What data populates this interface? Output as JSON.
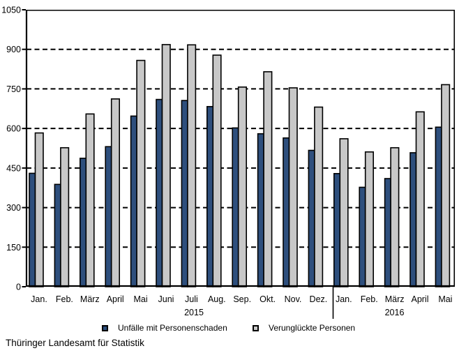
{
  "chart_data": {
    "type": "bar",
    "title": "",
    "xlabel": "",
    "ylabel": "",
    "categories": [
      "Jan.",
      "Feb.",
      "März",
      "April",
      "Mai",
      "Juni",
      "Juli",
      "Aug.",
      "Sep.",
      "Okt.",
      "Nov.",
      "Dez.",
      "Jan.",
      "Feb.",
      "März",
      "April",
      "Mai"
    ],
    "years": [
      {
        "label": "2015",
        "from": 0,
        "to": 11
      },
      {
        "label": "2016",
        "from": 12,
        "to": 16
      }
    ],
    "series": [
      {
        "name": "Unfälle mit Personenschaden",
        "color": "#2e4f7d",
        "values": [
          430,
          388,
          487,
          531,
          647,
          710,
          706,
          683,
          602,
          580,
          564,
          517,
          429,
          377,
          410,
          508,
          605
        ]
      },
      {
        "name": "Verunglückte Personen",
        "color": "#c8c8c8",
        "values": [
          583,
          527,
          655,
          712,
          858,
          918,
          917,
          878,
          757,
          815,
          754,
          681,
          561,
          511,
          527,
          663,
          766
        ]
      }
    ],
    "ylim": [
      0,
      1050
    ],
    "yticks": [
      0,
      150,
      300,
      450,
      600,
      750,
      900,
      1050
    ],
    "grid": "horizontal-dashed",
    "legend_position": "bottom",
    "divider_after_index": 11,
    "bar_border_color": "#000000",
    "axis_color": "#000000"
  },
  "footer": {
    "source": "Thüringer Landesamt für Statistik"
  }
}
